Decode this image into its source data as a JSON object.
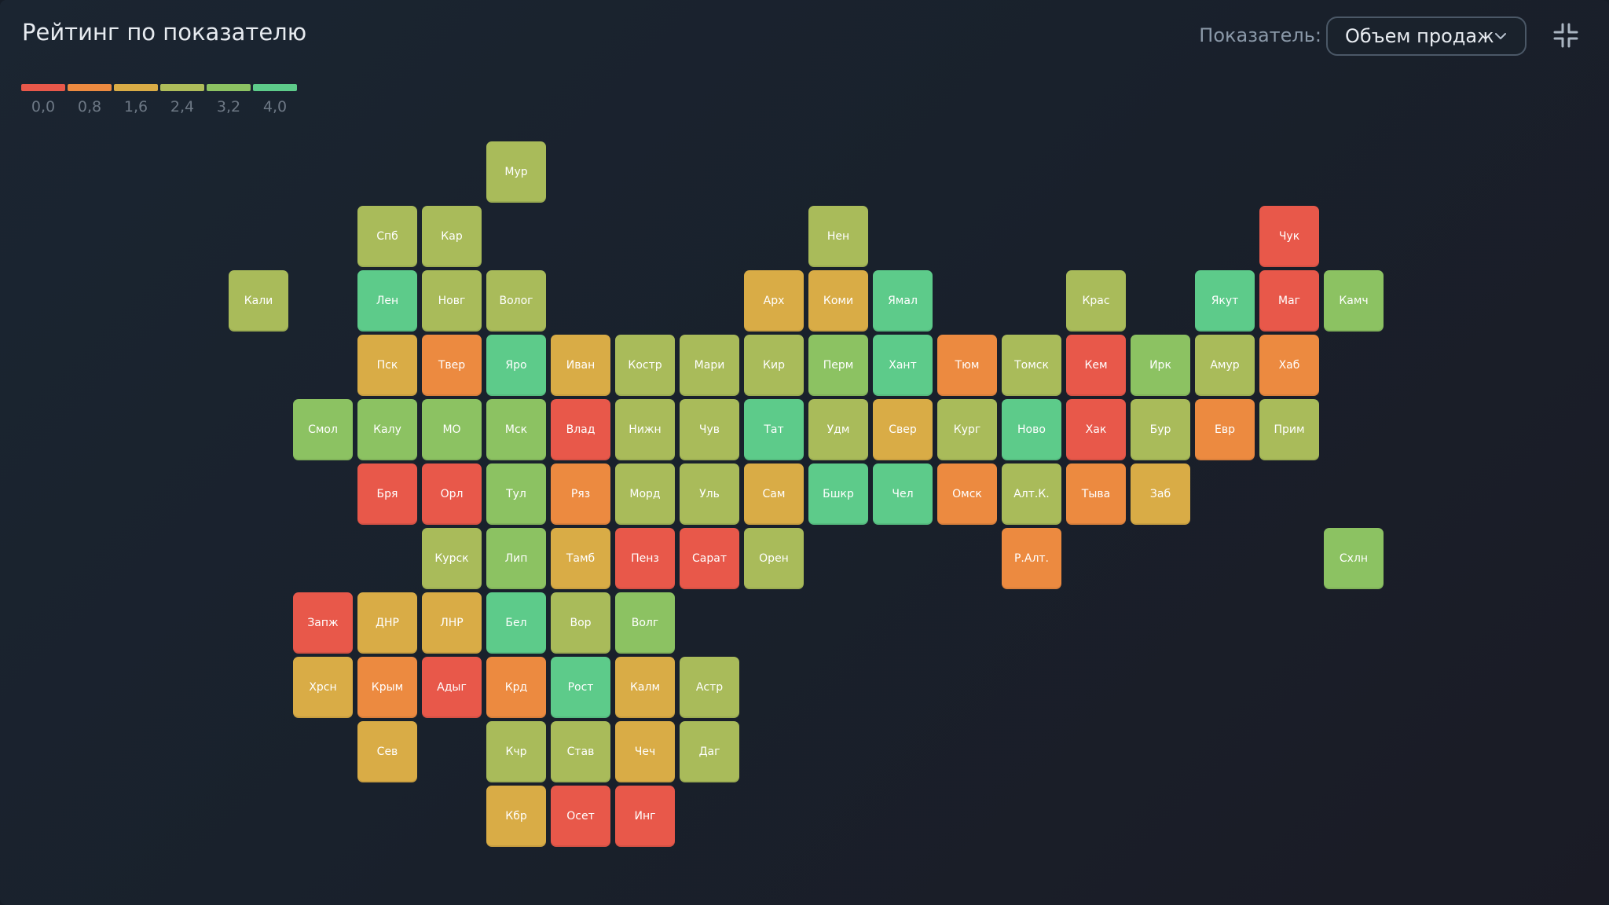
{
  "header": {
    "title": "Рейтинг по показателю",
    "indicator_label": "Показатель:",
    "indicator_value": "Объем продаж"
  },
  "icons": {
    "dropdown": "chevron-down-icon",
    "collapse": "collapse-icon"
  },
  "legend": {
    "colors": [
      "#e8584a",
      "#ec8a40",
      "#d9ac46",
      "#aebd5a",
      "#8cc262",
      "#5dcb8a"
    ],
    "labels": [
      "0,0",
      "0,8",
      "1,6",
      "2,4",
      "3,2",
      "4,0"
    ]
  },
  "colors": {
    "red": "#e8584a",
    "orange": "#ec8a40",
    "amber": "#d9ac46",
    "olive": "#a9bb5a",
    "lightgreen": "#8cc262",
    "green": "#5dcb8a"
  },
  "regions": [
    {
      "label": "Мур",
      "row": 0,
      "col": 4,
      "color": "olive"
    },
    {
      "label": "Спб",
      "row": 1,
      "col": 2,
      "color": "olive"
    },
    {
      "label": "Кар",
      "row": 1,
      "col": 3,
      "color": "olive"
    },
    {
      "label": "Нен",
      "row": 1,
      "col": 9,
      "color": "olive"
    },
    {
      "label": "Чук",
      "row": 1,
      "col": 16,
      "color": "red"
    },
    {
      "label": "Кали",
      "row": 2,
      "col": 0,
      "color": "olive"
    },
    {
      "label": "Лен",
      "row": 2,
      "col": 2,
      "color": "green"
    },
    {
      "label": "Новг",
      "row": 2,
      "col": 3,
      "color": "olive"
    },
    {
      "label": "Волог",
      "row": 2,
      "col": 4,
      "color": "olive"
    },
    {
      "label": "Арх",
      "row": 2,
      "col": 8,
      "color": "amber"
    },
    {
      "label": "Коми",
      "row": 2,
      "col": 9,
      "color": "amber"
    },
    {
      "label": "Ямал",
      "row": 2,
      "col": 10,
      "color": "green"
    },
    {
      "label": "Крас",
      "row": 2,
      "col": 13,
      "color": "olive"
    },
    {
      "label": "Якут",
      "row": 2,
      "col": 15,
      "color": "green"
    },
    {
      "label": "Маг",
      "row": 2,
      "col": 16,
      "color": "red"
    },
    {
      "label": "Камч",
      "row": 2,
      "col": 17,
      "color": "lightgreen"
    },
    {
      "label": "Пск",
      "row": 3,
      "col": 2,
      "color": "amber"
    },
    {
      "label": "Твер",
      "row": 3,
      "col": 3,
      "color": "orange"
    },
    {
      "label": "Яро",
      "row": 3,
      "col": 4,
      "color": "green"
    },
    {
      "label": "Иван",
      "row": 3,
      "col": 5,
      "color": "amber"
    },
    {
      "label": "Костр",
      "row": 3,
      "col": 6,
      "color": "olive"
    },
    {
      "label": "Мари",
      "row": 3,
      "col": 7,
      "color": "olive"
    },
    {
      "label": "Кир",
      "row": 3,
      "col": 8,
      "color": "olive"
    },
    {
      "label": "Перм",
      "row": 3,
      "col": 9,
      "color": "lightgreen"
    },
    {
      "label": "Хант",
      "row": 3,
      "col": 10,
      "color": "green"
    },
    {
      "label": "Тюм",
      "row": 3,
      "col": 11,
      "color": "orange"
    },
    {
      "label": "Томск",
      "row": 3,
      "col": 12,
      "color": "olive"
    },
    {
      "label": "Кем",
      "row": 3,
      "col": 13,
      "color": "red"
    },
    {
      "label": "Ирк",
      "row": 3,
      "col": 14,
      "color": "lightgreen"
    },
    {
      "label": "Амур",
      "row": 3,
      "col": 15,
      "color": "olive"
    },
    {
      "label": "Хаб",
      "row": 3,
      "col": 16,
      "color": "orange"
    },
    {
      "label": "Смол",
      "row": 4,
      "col": 1,
      "color": "lightgreen"
    },
    {
      "label": "Калу",
      "row": 4,
      "col": 2,
      "color": "lightgreen"
    },
    {
      "label": "МО",
      "row": 4,
      "col": 3,
      "color": "lightgreen"
    },
    {
      "label": "Мск",
      "row": 4,
      "col": 4,
      "color": "lightgreen"
    },
    {
      "label": "Влад",
      "row": 4,
      "col": 5,
      "color": "red"
    },
    {
      "label": "Нижн",
      "row": 4,
      "col": 6,
      "color": "olive"
    },
    {
      "label": "Чув",
      "row": 4,
      "col": 7,
      "color": "olive"
    },
    {
      "label": "Тат",
      "row": 4,
      "col": 8,
      "color": "green"
    },
    {
      "label": "Удм",
      "row": 4,
      "col": 9,
      "color": "olive"
    },
    {
      "label": "Свер",
      "row": 4,
      "col": 10,
      "color": "amber"
    },
    {
      "label": "Кург",
      "row": 4,
      "col": 11,
      "color": "olive"
    },
    {
      "label": "Ново",
      "row": 4,
      "col": 12,
      "color": "green"
    },
    {
      "label": "Хак",
      "row": 4,
      "col": 13,
      "color": "red"
    },
    {
      "label": "Бур",
      "row": 4,
      "col": 14,
      "color": "olive"
    },
    {
      "label": "Евр",
      "row": 4,
      "col": 15,
      "color": "orange"
    },
    {
      "label": "Прим",
      "row": 4,
      "col": 16,
      "color": "olive"
    },
    {
      "label": "Бря",
      "row": 5,
      "col": 2,
      "color": "red"
    },
    {
      "label": "Орл",
      "row": 5,
      "col": 3,
      "color": "red"
    },
    {
      "label": "Тул",
      "row": 5,
      "col": 4,
      "color": "lightgreen"
    },
    {
      "label": "Ряз",
      "row": 5,
      "col": 5,
      "color": "orange"
    },
    {
      "label": "Морд",
      "row": 5,
      "col": 6,
      "color": "olive"
    },
    {
      "label": "Уль",
      "row": 5,
      "col": 7,
      "color": "olive"
    },
    {
      "label": "Сам",
      "row": 5,
      "col": 8,
      "color": "amber"
    },
    {
      "label": "Бшкр",
      "row": 5,
      "col": 9,
      "color": "green"
    },
    {
      "label": "Чел",
      "row": 5,
      "col": 10,
      "color": "green"
    },
    {
      "label": "Омск",
      "row": 5,
      "col": 11,
      "color": "orange"
    },
    {
      "label": "Алт.К.",
      "row": 5,
      "col": 12,
      "color": "olive"
    },
    {
      "label": "Тыва",
      "row": 5,
      "col": 13,
      "color": "orange"
    },
    {
      "label": "Заб",
      "row": 5,
      "col": 14,
      "color": "amber"
    },
    {
      "label": "Курск",
      "row": 6,
      "col": 3,
      "color": "olive"
    },
    {
      "label": "Лип",
      "row": 6,
      "col": 4,
      "color": "lightgreen"
    },
    {
      "label": "Тамб",
      "row": 6,
      "col": 5,
      "color": "amber"
    },
    {
      "label": "Пенз",
      "row": 6,
      "col": 6,
      "color": "red"
    },
    {
      "label": "Сарат",
      "row": 6,
      "col": 7,
      "color": "red"
    },
    {
      "label": "Орен",
      "row": 6,
      "col": 8,
      "color": "olive"
    },
    {
      "label": "Р.Алт.",
      "row": 6,
      "col": 12,
      "color": "orange"
    },
    {
      "label": "Схлн",
      "row": 6,
      "col": 17,
      "color": "lightgreen"
    },
    {
      "label": "Запж",
      "row": 7,
      "col": 1,
      "color": "red"
    },
    {
      "label": "ДНР",
      "row": 7,
      "col": 2,
      "color": "amber"
    },
    {
      "label": "ЛНР",
      "row": 7,
      "col": 3,
      "color": "amber"
    },
    {
      "label": "Бел",
      "row": 7,
      "col": 4,
      "color": "green"
    },
    {
      "label": "Вор",
      "row": 7,
      "col": 5,
      "color": "olive"
    },
    {
      "label": "Волг",
      "row": 7,
      "col": 6,
      "color": "lightgreen"
    },
    {
      "label": "Хрсн",
      "row": 8,
      "col": 1,
      "color": "amber"
    },
    {
      "label": "Крым",
      "row": 8,
      "col": 2,
      "color": "orange"
    },
    {
      "label": "Адыг",
      "row": 8,
      "col": 3,
      "color": "red"
    },
    {
      "label": "Крд",
      "row": 8,
      "col": 4,
      "color": "orange"
    },
    {
      "label": "Рост",
      "row": 8,
      "col": 5,
      "color": "green"
    },
    {
      "label": "Калм",
      "row": 8,
      "col": 6,
      "color": "amber"
    },
    {
      "label": "Астр",
      "row": 8,
      "col": 7,
      "color": "olive"
    },
    {
      "label": "Сев",
      "row": 9,
      "col": 2,
      "color": "amber"
    },
    {
      "label": "Кчр",
      "row": 9,
      "col": 4,
      "color": "olive"
    },
    {
      "label": "Став",
      "row": 9,
      "col": 5,
      "color": "olive"
    },
    {
      "label": "Чеч",
      "row": 9,
      "col": 6,
      "color": "amber"
    },
    {
      "label": "Даг",
      "row": 9,
      "col": 7,
      "color": "olive"
    },
    {
      "label": "Кбр",
      "row": 10,
      "col": 4,
      "color": "amber"
    },
    {
      "label": "Осет",
      "row": 10,
      "col": 5,
      "color": "red"
    },
    {
      "label": "Инг",
      "row": 10,
      "col": 6,
      "color": "red"
    }
  ]
}
